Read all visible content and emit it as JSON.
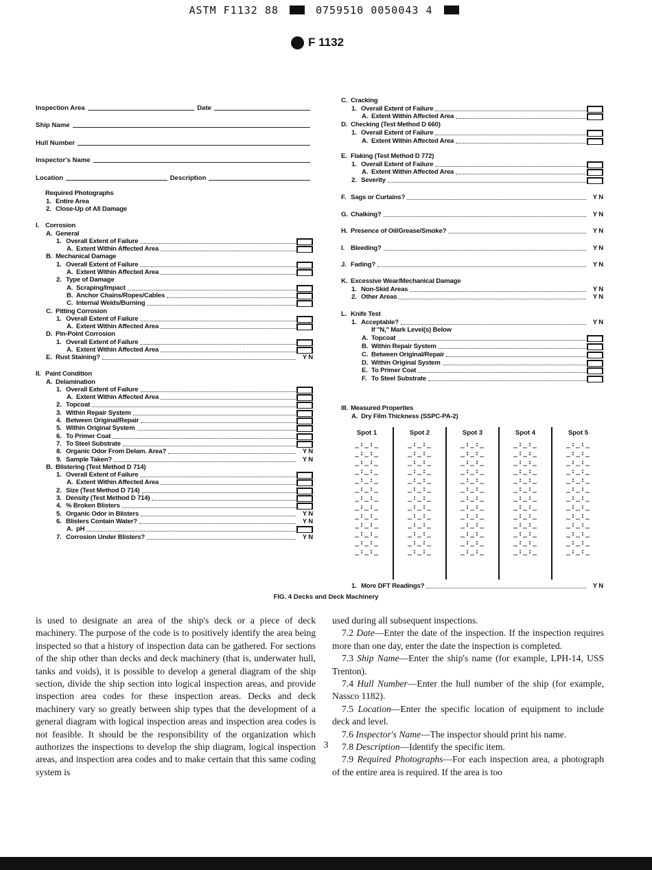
{
  "header": {
    "code_left": "ASTM F1132 88",
    "code_mid": "0759510 0050043 4",
    "logo_text": "F 1132"
  },
  "fields": {
    "inspection_area": "Inspection Area",
    "date": "Date",
    "ship_name": "Ship Name",
    "hull_number": "Hull Number",
    "inspector": "Inspector's Name",
    "location": "Location",
    "description": "Description"
  },
  "left_groups": [
    {
      "rows": [
        [
          0,
          "",
          "Required Photographs",
          ""
        ],
        [
          1,
          "1.",
          "Entire Area",
          ""
        ],
        [
          1,
          "2.",
          "Close-Up of All Damage",
          ""
        ]
      ]
    },
    {
      "rows": [
        [
          0,
          "I.",
          "Corrosion",
          ""
        ],
        [
          1,
          "A.",
          "General",
          ""
        ],
        [
          2,
          "1.",
          "Overall Extent of Failure",
          "box"
        ],
        [
          3,
          "A.",
          "Extent Within Affected Area",
          "box"
        ],
        [
          1,
          "B.",
          "Mechanical Damage",
          ""
        ],
        [
          2,
          "1.",
          "Overall Extent of Failure",
          "box"
        ],
        [
          3,
          "A.",
          "Extent Within Affected Area",
          "box"
        ],
        [
          2,
          "2.",
          "Type of Damage",
          ""
        ],
        [
          3,
          "A.",
          "Scraping/Impact",
          "box"
        ],
        [
          3,
          "B.",
          "Anchor Chains/Ropes/Cables",
          "box"
        ],
        [
          3,
          "C.",
          "Internal Welds/Burning",
          "box"
        ],
        [
          1,
          "C.",
          "Pitting Corrosion",
          ""
        ],
        [
          2,
          "1.",
          "Overall Extent of Failure",
          "box"
        ],
        [
          3,
          "A.",
          "Extent Within Affected Area",
          "box"
        ],
        [
          1,
          "D.",
          "Pin-Point Corrosion",
          ""
        ],
        [
          2,
          "1.",
          "Overall Extent of Failure",
          "box"
        ],
        [
          3,
          "A.",
          "Extent Within Affected Area",
          "box"
        ],
        [
          1,
          "E.",
          "Rust Staining?",
          "yn"
        ]
      ]
    },
    {
      "rows": [
        [
          0,
          "II.",
          "Paint Condition",
          ""
        ],
        [
          1,
          "A.",
          "Delamination",
          ""
        ],
        [
          2,
          "1.",
          "Overall Extent of Failure",
          "box"
        ],
        [
          3,
          "A.",
          "Extent Within Affected Area",
          "box"
        ],
        [
          2,
          "2.",
          "Topcoat",
          "box"
        ],
        [
          2,
          "3.",
          "Within Repair System",
          "box"
        ],
        [
          2,
          "4.",
          "Between Original/Repair",
          "box"
        ],
        [
          2,
          "5.",
          "Within Original System",
          "box"
        ],
        [
          2,
          "6.",
          "To Primer Coat",
          "box"
        ],
        [
          2,
          "7.",
          "To Steel Substrate",
          "box"
        ],
        [
          2,
          "8.",
          "Organic Odor From Delam. Area?",
          "yn"
        ],
        [
          2,
          "9.",
          "Sample Taken?",
          "yn"
        ],
        [
          1,
          "B.",
          "Blistering (Test Method D 714)",
          ""
        ],
        [
          2,
          "1.",
          "Overall Extent of Failure",
          "box"
        ],
        [
          3,
          "A.",
          "Extent Within Affected Area",
          "box"
        ],
        [
          2,
          "2.",
          "Size (Test Method D 714)",
          "box"
        ],
        [
          2,
          "3.",
          "Density (Test Method D 714)",
          "box"
        ],
        [
          2,
          "4.",
          "% Broken Blisters",
          "box"
        ],
        [
          2,
          "5.",
          "Organic Odor in Blisters",
          "yn"
        ],
        [
          2,
          "6.",
          "Blisters Contain Water?",
          "yn"
        ],
        [
          3,
          "A.",
          "pH",
          "box"
        ],
        [
          2,
          "7.",
          "Corrosion Under Blisters?",
          "yn"
        ]
      ]
    }
  ],
  "right_groups": [
    {
      "rows": [
        [
          0,
          "C.",
          "Cracking",
          ""
        ],
        [
          1,
          "1.",
          "Overall Extent of Failure",
          "box"
        ],
        [
          2,
          "A.",
          "Extent Within Affected Area",
          "box"
        ],
        [
          0,
          "D.",
          "Checking (Test Method D 660)",
          ""
        ],
        [
          1,
          "1.",
          "Overall Extent of Failure",
          "box"
        ],
        [
          2,
          "A.",
          "Extent Within Affected Area",
          "box"
        ]
      ]
    },
    {
      "rows": [
        [
          0,
          "E.",
          "Flaking (Test Method D 772)",
          ""
        ],
        [
          1,
          "1.",
          "Overall Extent of Failure",
          "box"
        ],
        [
          2,
          "A.",
          "Extent Within Affected Area",
          "box"
        ],
        [
          1,
          "2.",
          "Severity",
          "box"
        ]
      ]
    },
    {
      "rows": [
        [
          0,
          "F.",
          "Sags or Curtains?",
          "yn"
        ]
      ]
    },
    {
      "rows": [
        [
          0,
          "G.",
          "Chalking?",
          "yn"
        ]
      ]
    },
    {
      "rows": [
        [
          0,
          "H.",
          "Presence of Oil/Grease/Smoke?",
          "yn"
        ]
      ]
    },
    {
      "rows": [
        [
          0,
          "I.",
          "Bleeding?",
          "yn"
        ]
      ]
    },
    {
      "rows": [
        [
          0,
          "J.",
          "Fading?",
          "yn"
        ]
      ]
    },
    {
      "rows": [
        [
          0,
          "K.",
          "Excessive Wear/Mechanical Damage",
          ""
        ],
        [
          1,
          "1.",
          "Non-Skid Areas",
          "yn"
        ],
        [
          1,
          "2.",
          "Other Areas",
          "yn"
        ]
      ]
    },
    {
      "rows": [
        [
          0,
          "L.",
          "Knife Test",
          ""
        ],
        [
          1,
          "1.",
          "Acceptable?",
          "yn"
        ],
        [
          2,
          "",
          "If \"N,\" Mark Level(s) Below",
          ""
        ],
        [
          2,
          "A.",
          "Topcoat",
          "box"
        ],
        [
          2,
          "B.",
          "Within Repair System",
          "box"
        ],
        [
          2,
          "C.",
          "Between Original/Repair",
          "box"
        ],
        [
          2,
          "D.",
          "Within Original System",
          "box"
        ],
        [
          2,
          "E.",
          "To Primer Coat",
          "box"
        ],
        [
          2,
          "F.",
          "To Steel Substrate",
          "box"
        ]
      ]
    },
    {
      "rows": [
        [
          0,
          "III.",
          "Measured Properties",
          ""
        ],
        [
          1,
          "A.",
          "Dry Film Thickness (SSPC-PA-2)",
          ""
        ]
      ]
    }
  ],
  "yn_label": "Y  N",
  "dft": {
    "columns": [
      "Spot 1",
      "Spot 2",
      "Spot 3",
      "Spot 4",
      "Spot 5"
    ],
    "blank": "_:_:_",
    "rows": 13,
    "more": [
      1,
      "1.",
      "More DFT Readings?",
      "yn"
    ]
  },
  "caption": "FIG. 4   Decks and Deck Machinery",
  "body_left": [
    {
      "num": "",
      "term": "",
      "text": "is used to designate an area of the ship's deck or a piece of deck machinery. The purpose of the code is to positively identify the area being inspected so that a history of inspection data can be gathered. For sections of the ship other than decks and deck machinery (that is, underwater hull, tanks and voids), it is possible to develop a general diagram of the ship section, divide the ship section into logical inspection areas, and provide inspection area codes for these inspection areas. Decks and deck machinery vary so greatly between ship types that the development of a general diagram with logical inspection areas and inspection area codes is not feasible. It should be the responsibility of the organization which authorizes the inspections to develop the ship diagram, logical inspection areas, and inspection area codes and to make certain that this same coding system is"
    }
  ],
  "body_right": [
    {
      "num": "",
      "term": "",
      "text": "used during all subsequent inspections."
    },
    {
      "num": "7.2 ",
      "term": "Date",
      "text": "—Enter the date of the inspection. If the inspection requires more than one day, enter the date the inspection is completed."
    },
    {
      "num": "7.3 ",
      "term": "Ship Name",
      "text": "—Enter the ship's name (for example, LPH-14, USS Trenton)."
    },
    {
      "num": "7.4 ",
      "term": "Hull Number",
      "text": "—Enter the hull number of the ship (for example, Nassco 1182)."
    },
    {
      "num": "7.5 ",
      "term": "Location",
      "text": "—Enter the specific location of equipment to include deck and level."
    },
    {
      "num": "7.6 ",
      "term": "Inspector's Name",
      "text": "—The inspector should print his name."
    },
    {
      "num": "7.8 ",
      "term": "Description",
      "text": "—Identify the specific item."
    },
    {
      "num": "7.9 ",
      "term": "Required Photographs",
      "text": "—For each inspection area, a photograph of the entire area is required. If the area is too"
    }
  ],
  "page_number": "3"
}
